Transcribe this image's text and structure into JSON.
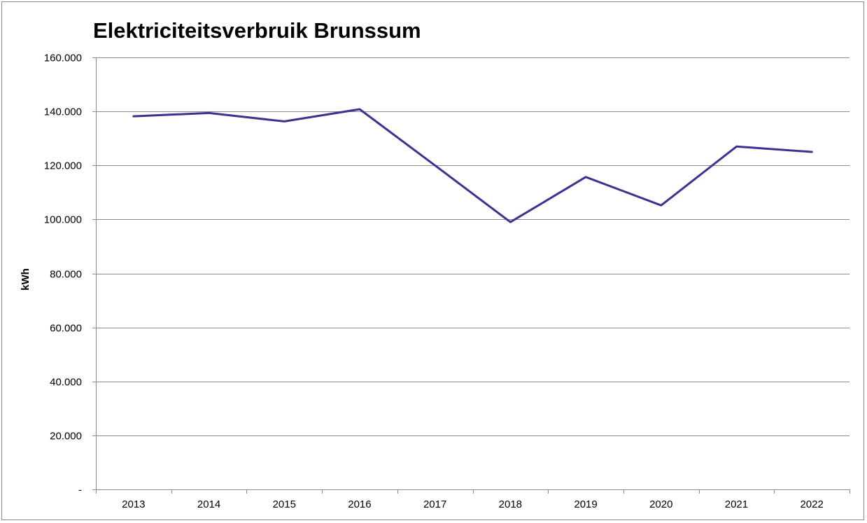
{
  "chart_data": {
    "type": "line",
    "title": "Elektriciteitsverbruik Brunssum",
    "xlabel": "",
    "ylabel": "kWh",
    "categories": [
      "2013",
      "2014",
      "2015",
      "2016",
      "2017",
      "2018",
      "2019",
      "2020",
      "2021",
      "2022"
    ],
    "series": [
      {
        "values": [
          138200,
          139400,
          136300,
          140800,
          120000,
          99000,
          115700,
          105200,
          127000,
          125000
        ]
      }
    ],
    "ylim": [
      0,
      160000
    ],
    "yticks": [
      0,
      20000,
      40000,
      60000,
      80000,
      100000,
      120000,
      140000,
      160000
    ],
    "ytick_labels": [
      "-",
      "20.000",
      "40.000",
      "60.000",
      "80.000",
      "100.000",
      "120.000",
      "140.000",
      "160.000"
    ],
    "grid": true,
    "legend": "none",
    "colors": {
      "line": "#3f3191",
      "grid": "#8c8c8c",
      "axis": "#8c8c8c"
    }
  }
}
